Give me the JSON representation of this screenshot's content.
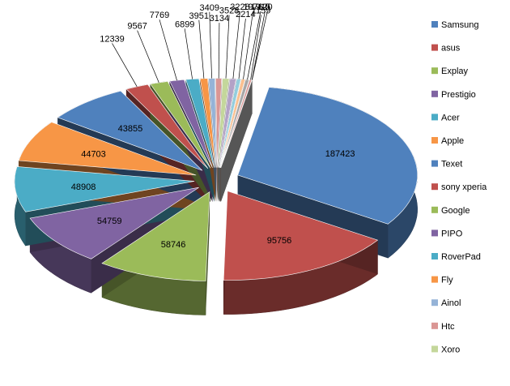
{
  "chart_data": {
    "type": "pie",
    "title": "",
    "exploded": true,
    "three_d": true,
    "legend": "right",
    "categories": [
      "Samsung",
      "asus",
      "Explay",
      "Prestigio",
      "Acer",
      "Apple",
      "Texet",
      "sony xperia",
      "Google",
      "PIPO",
      "RoverPad",
      "Fly",
      "Ainol",
      "Htc",
      "Xoro"
    ],
    "slices": [
      {
        "label": "Samsung",
        "value": 187423,
        "color": "#4F81BD"
      },
      {
        "label": "asus",
        "value": 95756,
        "color": "#C0504D"
      },
      {
        "label": "Explay",
        "value": 58746,
        "color": "#9BBB59"
      },
      {
        "label": "Prestigio",
        "value": 54759,
        "color": "#8064A2"
      },
      {
        "label": "Acer",
        "value": 48908,
        "color": "#4BACC6"
      },
      {
        "label": "Apple",
        "value": 44703,
        "color": "#F79646"
      },
      {
        "label": "Texet",
        "value": 43855,
        "color": "#4F81BD"
      },
      {
        "label": "sony xperia",
        "value": 12339,
        "color": "#C0504D"
      },
      {
        "label": "Google",
        "value": 9567,
        "color": "#9BBB59"
      },
      {
        "label": "PIPO",
        "value": 7769,
        "color": "#8064A2"
      },
      {
        "label": "RoverPad",
        "value": 6899,
        "color": "#4BACC6"
      },
      {
        "label": "Fly",
        "value": 3951,
        "color": "#F79646"
      },
      {
        "label": "Ainol",
        "value": 3409,
        "color": "#95B3D7"
      },
      {
        "label": "Htc",
        "value": 3134,
        "color": "#DA9694"
      },
      {
        "label": "Xoro",
        "value": 3528,
        "color": "#C4D79B"
      },
      {
        "value": 3228,
        "color": "#B3A2C7"
      },
      {
        "value": 2214,
        "color": "#93CDDD"
      },
      {
        "value": 1976,
        "color": "#FAC090"
      },
      {
        "value": 1915,
        "color": "#A6A6A6"
      },
      {
        "value": 1159,
        "color": "#D99694"
      },
      {
        "value": 120,
        "color": "#C0C0C0"
      },
      {
        "value": 0,
        "color": "#C0C0C0"
      }
    ]
  }
}
